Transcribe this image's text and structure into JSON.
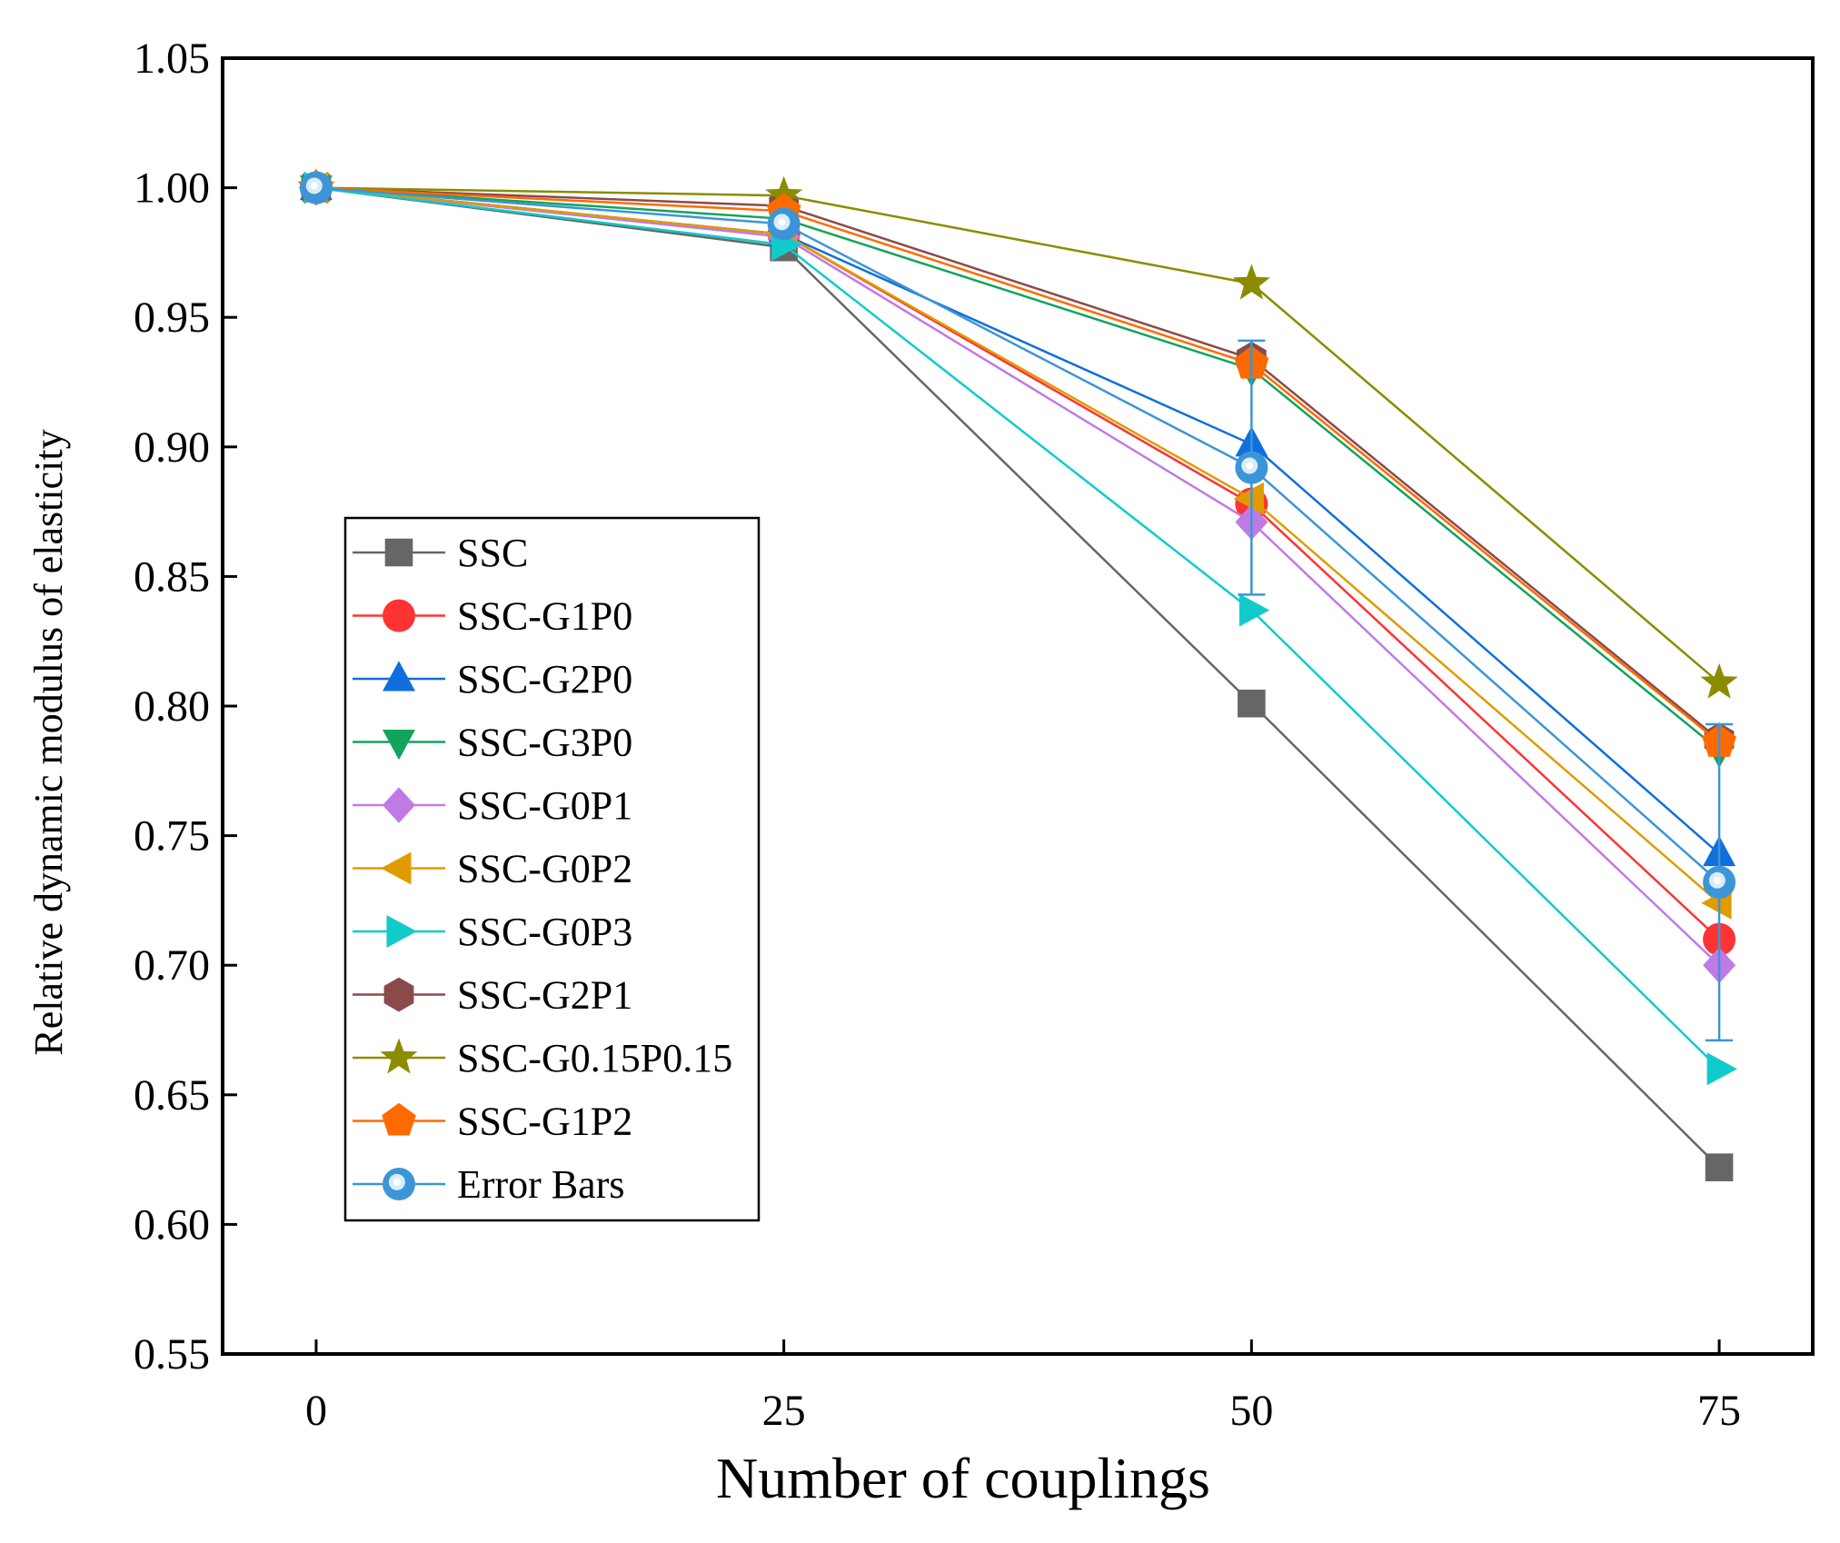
{
  "chart_data": {
    "type": "line",
    "title": "",
    "xlabel": "Number of couplings",
    "ylabel": "Relative dynamic modulus of elasticity",
    "x": [
      0,
      25,
      50,
      75
    ],
    "x_ticks": [
      "0",
      "25",
      "50",
      "75"
    ],
    "y_ticks": [
      "0.55",
      "0.60",
      "0.65",
      "0.70",
      "0.75",
      "0.80",
      "0.85",
      "0.90",
      "0.95",
      "1.00",
      "1.05"
    ],
    "xlim": [
      -5,
      80
    ],
    "ylim": [
      0.55,
      1.05
    ],
    "grid": false,
    "legend_position": "center-left",
    "series": [
      {
        "name": "SSC",
        "color": "#666666",
        "marker": "square",
        "values": [
          1.0,
          0.977,
          0.801,
          0.622
        ]
      },
      {
        "name": "SSC-G1P0",
        "color": "#ff3333",
        "marker": "circle",
        "values": [
          1.0,
          0.982,
          0.878,
          0.71
        ]
      },
      {
        "name": "SSC-G2P0",
        "color": "#0f6fdc",
        "marker": "triangle-up",
        "values": [
          1.0,
          0.982,
          0.901,
          0.743
        ]
      },
      {
        "name": "SSC-G3P0",
        "color": "#12a35c",
        "marker": "triangle-down",
        "values": [
          1.0,
          0.988,
          0.93,
          0.783
        ]
      },
      {
        "name": "SSC-G0P1",
        "color": "#c07ae6",
        "marker": "diamond",
        "values": [
          1.0,
          0.981,
          0.871,
          0.7
        ]
      },
      {
        "name": "SSC-G0P2",
        "color": "#e09b00",
        "marker": "triangle-left",
        "values": [
          1.0,
          0.982,
          0.88,
          0.724
        ]
      },
      {
        "name": "SSC-G0P3",
        "color": "#11cbcb",
        "marker": "triangle-right",
        "values": [
          1.0,
          0.978,
          0.837,
          0.66
        ]
      },
      {
        "name": "SSC-G2P1",
        "color": "#8a4a4a",
        "marker": "hexagon",
        "values": [
          1.0,
          0.993,
          0.934,
          0.787
        ]
      },
      {
        "name": "SSC-G0.15P0.15",
        "color": "#8c8c00",
        "marker": "star",
        "values": [
          1.0,
          0.997,
          0.963,
          0.809
        ]
      },
      {
        "name": "SSC-G1P2",
        "color": "#ff6a00",
        "marker": "pentagon",
        "values": [
          1.0,
          0.991,
          0.932,
          0.786
        ]
      },
      {
        "name": "Error Bars",
        "color": "#3c95d6",
        "marker": "ring",
        "values": [
          1.0,
          0.986,
          0.892,
          0.732
        ],
        "errors": [
          0.0,
          0.0,
          0.049,
          0.061
        ]
      }
    ]
  }
}
